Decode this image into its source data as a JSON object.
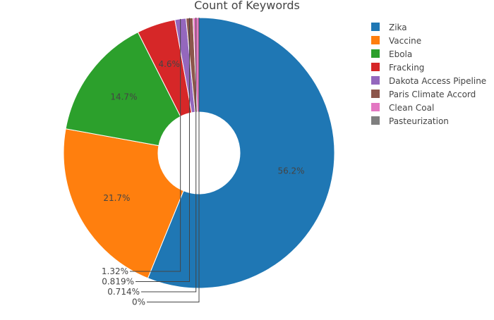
{
  "chart_data": {
    "type": "pie",
    "title": "Count of Keywords",
    "hole": true,
    "legend_position": "right",
    "slices": [
      {
        "label": "Zika",
        "percent": 56.2,
        "percent_text": "56.2%",
        "color": "#1f77b4"
      },
      {
        "label": "Vaccine",
        "percent": 21.7,
        "percent_text": "21.7%",
        "color": "#ff7f0e"
      },
      {
        "label": "Ebola",
        "percent": 14.7,
        "percent_text": "14.7%",
        "color": "#2ca02c"
      },
      {
        "label": "Fracking",
        "percent": 4.6,
        "percent_text": "4.6%",
        "color": "#d62728"
      },
      {
        "label": "Dakota Access Pipeline",
        "percent": 1.32,
        "percent_text": "1.32%",
        "color": "#9467bd"
      },
      {
        "label": "Paris Climate Accord",
        "percent": 0.819,
        "percent_text": "0.819%",
        "color": "#8c564b"
      },
      {
        "label": "Clean Coal",
        "percent": 0.714,
        "percent_text": "0.714%",
        "color": "#e377c2"
      },
      {
        "label": "Pasteurization",
        "percent": 0,
        "percent_text": "0%",
        "color": "#7f7f7f"
      }
    ]
  }
}
